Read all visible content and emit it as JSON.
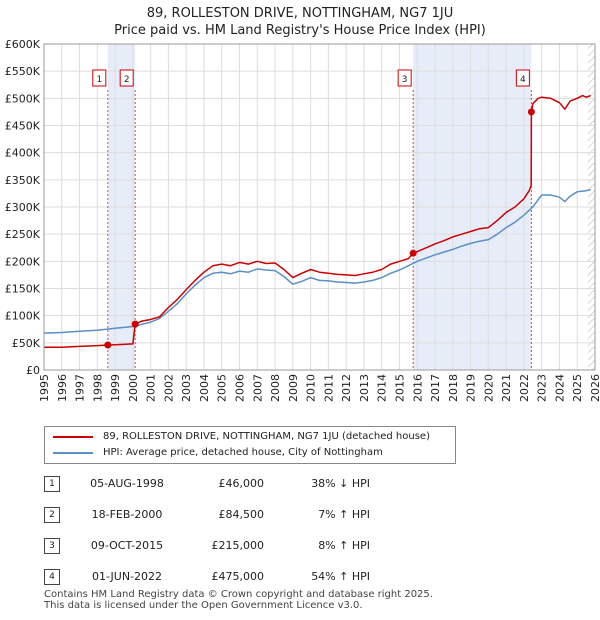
{
  "chart_data": {
    "type": "line",
    "title": "89, ROLLESTON DRIVE, NOTTINGHAM, NG7 1JU",
    "subtitle": "Price paid vs. HM Land Registry's House Price Index (HPI)",
    "xlim": [
      1995,
      2026
    ],
    "ylim": [
      0,
      600000
    ],
    "x_ticks": [
      "1995",
      "1996",
      "1997",
      "1998",
      "1999",
      "2000",
      "2001",
      "2002",
      "2003",
      "2004",
      "2005",
      "2006",
      "2007",
      "2008",
      "2009",
      "2010",
      "2011",
      "2012",
      "2013",
      "2014",
      "2015",
      "2016",
      "2017",
      "2018",
      "2019",
      "2020",
      "2021",
      "2022",
      "2023",
      "2024",
      "2025",
      "2026"
    ],
    "y_ticks": [
      {
        "value": 0,
        "label": "£0"
      },
      {
        "value": 50000,
        "label": "£50K"
      },
      {
        "value": 100000,
        "label": "£100K"
      },
      {
        "value": 150000,
        "label": "£150K"
      },
      {
        "value": 200000,
        "label": "£200K"
      },
      {
        "value": 250000,
        "label": "£250K"
      },
      {
        "value": 300000,
        "label": "£300K"
      },
      {
        "value": 350000,
        "label": "£350K"
      },
      {
        "value": 400000,
        "label": "£400K"
      },
      {
        "value": 450000,
        "label": "£450K"
      },
      {
        "value": 500000,
        "label": "£500K"
      },
      {
        "value": 550000,
        "label": "£550K"
      },
      {
        "value": 600000,
        "label": "£600K"
      }
    ],
    "series": [
      {
        "name": "89, ROLLESTON DRIVE, NOTTINGHAM, NG7 1JU (detached house)",
        "color": "#cc0000",
        "points": [
          [
            1995.0,
            42000
          ],
          [
            1996.0,
            42000
          ],
          [
            1997.0,
            43500
          ],
          [
            1998.0,
            45000
          ],
          [
            1998.59,
            46000
          ],
          [
            1999.0,
            46500
          ],
          [
            1999.6,
            47500
          ],
          [
            2000.0,
            48000
          ],
          [
            2000.13,
            84500
          ],
          [
            2000.5,
            90000
          ],
          [
            2001.0,
            93000
          ],
          [
            2001.5,
            98000
          ],
          [
            2002.0,
            115000
          ],
          [
            2002.5,
            130000
          ],
          [
            2003.0,
            148000
          ],
          [
            2003.5,
            165000
          ],
          [
            2004.0,
            180000
          ],
          [
            2004.5,
            192000
          ],
          [
            2005.0,
            195000
          ],
          [
            2005.5,
            192000
          ],
          [
            2006.0,
            198000
          ],
          [
            2006.5,
            195000
          ],
          [
            2007.0,
            200000
          ],
          [
            2007.5,
            196000
          ],
          [
            2008.0,
            197000
          ],
          [
            2008.5,
            185000
          ],
          [
            2009.0,
            170000
          ],
          [
            2009.5,
            178000
          ],
          [
            2010.0,
            185000
          ],
          [
            2010.5,
            180000
          ],
          [
            2011.0,
            178000
          ],
          [
            2011.5,
            176000
          ],
          [
            2012.0,
            175000
          ],
          [
            2012.5,
            174000
          ],
          [
            2013.0,
            177000
          ],
          [
            2013.5,
            180000
          ],
          [
            2014.0,
            185000
          ],
          [
            2014.5,
            195000
          ],
          [
            2015.0,
            200000
          ],
          [
            2015.5,
            205000
          ],
          [
            2015.77,
            215000
          ],
          [
            2016.0,
            218000
          ],
          [
            2016.5,
            225000
          ],
          [
            2017.0,
            232000
          ],
          [
            2017.5,
            238000
          ],
          [
            2018.0,
            245000
          ],
          [
            2018.5,
            250000
          ],
          [
            2019.0,
            255000
          ],
          [
            2019.5,
            260000
          ],
          [
            2020.0,
            262000
          ],
          [
            2020.5,
            275000
          ],
          [
            2021.0,
            290000
          ],
          [
            2021.5,
            300000
          ],
          [
            2022.0,
            315000
          ],
          [
            2022.3,
            330000
          ],
          [
            2022.41,
            340000
          ],
          [
            2022.42,
            475000
          ],
          [
            2022.5,
            490000
          ],
          [
            2022.8,
            500000
          ],
          [
            2023.0,
            502000
          ],
          [
            2023.5,
            500000
          ],
          [
            2024.0,
            492000
          ],
          [
            2024.3,
            480000
          ],
          [
            2024.6,
            495000
          ],
          [
            2025.0,
            500000
          ],
          [
            2025.3,
            505000
          ],
          [
            2025.5,
            502000
          ],
          [
            2025.75,
            505000
          ]
        ]
      },
      {
        "name": "HPI: Average price, detached house, City of Nottingham",
        "color": "#5b8fc7",
        "points": [
          [
            1995.0,
            68000
          ],
          [
            1996.0,
            69000
          ],
          [
            1997.0,
            71500
          ],
          [
            1998.0,
            73000
          ],
          [
            1999.0,
            77000
          ],
          [
            2000.0,
            80000
          ],
          [
            2000.5,
            84000
          ],
          [
            2001.0,
            88000
          ],
          [
            2001.5,
            95000
          ],
          [
            2002.0,
            108000
          ],
          [
            2002.5,
            122000
          ],
          [
            2003.0,
            140000
          ],
          [
            2003.5,
            156000
          ],
          [
            2004.0,
            170000
          ],
          [
            2004.5,
            178000
          ],
          [
            2005.0,
            180000
          ],
          [
            2005.5,
            177000
          ],
          [
            2006.0,
            182000
          ],
          [
            2006.5,
            180000
          ],
          [
            2007.0,
            186000
          ],
          [
            2007.5,
            184000
          ],
          [
            2008.0,
            183000
          ],
          [
            2008.5,
            172000
          ],
          [
            2009.0,
            158000
          ],
          [
            2009.5,
            163000
          ],
          [
            2010.0,
            170000
          ],
          [
            2010.5,
            165000
          ],
          [
            2011.0,
            164000
          ],
          [
            2011.5,
            162000
          ],
          [
            2012.0,
            161000
          ],
          [
            2012.5,
            160000
          ],
          [
            2013.0,
            162000
          ],
          [
            2013.5,
            165000
          ],
          [
            2014.0,
            170000
          ],
          [
            2014.5,
            178000
          ],
          [
            2015.0,
            184000
          ],
          [
            2015.5,
            192000
          ],
          [
            2016.0,
            200000
          ],
          [
            2016.5,
            206000
          ],
          [
            2017.0,
            212000
          ],
          [
            2017.5,
            217000
          ],
          [
            2018.0,
            222000
          ],
          [
            2018.5,
            228000
          ],
          [
            2019.0,
            233000
          ],
          [
            2019.5,
            237000
          ],
          [
            2020.0,
            240000
          ],
          [
            2020.5,
            250000
          ],
          [
            2021.0,
            262000
          ],
          [
            2021.5,
            272000
          ],
          [
            2022.0,
            285000
          ],
          [
            2022.5,
            300000
          ],
          [
            2023.0,
            322000
          ],
          [
            2023.5,
            322000
          ],
          [
            2024.0,
            318000
          ],
          [
            2024.3,
            310000
          ],
          [
            2024.6,
            320000
          ],
          [
            2025.0,
            328000
          ],
          [
            2025.5,
            330000
          ],
          [
            2025.75,
            332000
          ]
        ]
      }
    ],
    "sales": [
      {
        "id": "1",
        "x": 1998.59,
        "price": 46000
      },
      {
        "id": "2",
        "x": 2000.13,
        "price": 84500
      },
      {
        "id": "3",
        "x": 2015.77,
        "price": 215000
      },
      {
        "id": "4",
        "x": 2022.42,
        "price": 475000
      }
    ],
    "shaded_ranges": [
      [
        1998.59,
        2000.13
      ],
      [
        2015.77,
        2022.42
      ]
    ],
    "hatched_from": 2025.6,
    "grid": true
  },
  "legend": {
    "property_label": "89, ROLLESTON DRIVE, NOTTINGHAM, NG7 1JU (detached house)",
    "hpi_label": "HPI: Average price, detached house, City of Nottingham",
    "property_color": "#cc0000",
    "hpi_color": "#5b8fc7"
  },
  "transactions": [
    {
      "num": "1",
      "date": "05-AUG-1998",
      "price": "£46,000",
      "hpi": "38% ↓ HPI"
    },
    {
      "num": "2",
      "date": "18-FEB-2000",
      "price": "£84,500",
      "hpi": "7% ↑ HPI"
    },
    {
      "num": "3",
      "date": "09-OCT-2015",
      "price": "£215,000",
      "hpi": "8% ↑ HPI"
    },
    {
      "num": "4",
      "date": "01-JUN-2022",
      "price": "£475,000",
      "hpi": "54% ↑ HPI"
    }
  ],
  "footer": {
    "line1": "Contains HM Land Registry data © Crown copyright and database right 2025.",
    "line2": "This data is licensed under the Open Government Licence v3.0."
  }
}
